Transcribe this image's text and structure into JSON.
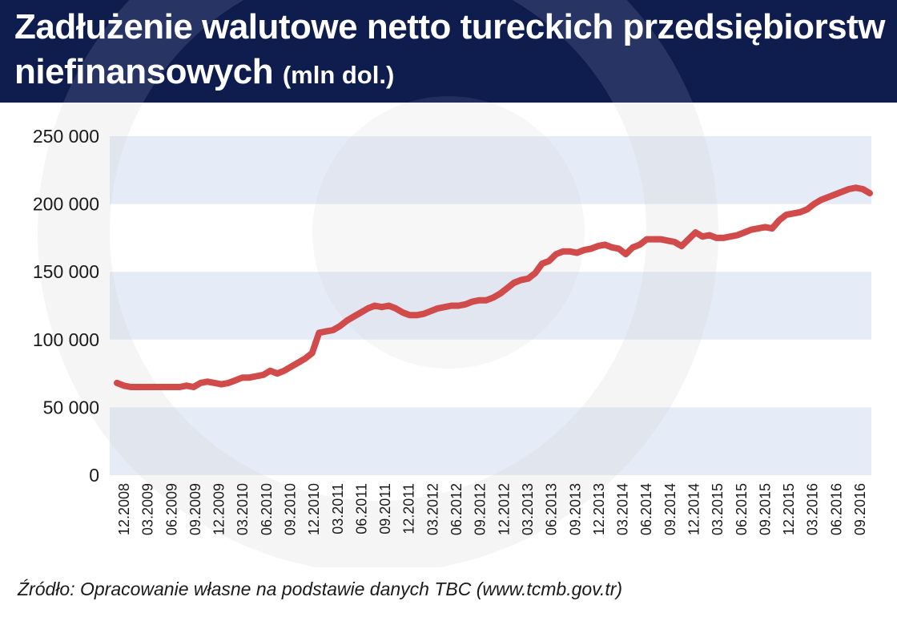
{
  "header": {
    "title": "Zadłużenie walutowe netto tureckich przedsiębiorstw niefinansowych",
    "unit": "(mln dol.)"
  },
  "source": "Źródło: Opracowanie własne na podstawie danych TBC (www.tcmb.gov.tr)",
  "colors": {
    "header_bg": "#0e1d4e",
    "band": "#e6ecf7",
    "line": "#d24b4b",
    "watermark": "#c8c8c8"
  },
  "chart_data": {
    "type": "line",
    "title": "Zadłużenie walutowe netto tureckich przedsiębiorstw niefinansowych (mln dol.)",
    "ylim": [
      0,
      250000
    ],
    "yticks": [
      0,
      50000,
      100000,
      150000,
      200000,
      250000
    ],
    "ytick_labels": [
      "0",
      "50 000",
      "100 000",
      "150 000",
      "200 000",
      "250 000"
    ],
    "xtick_labels": [
      "12.2008",
      "03.2009",
      "06.2009",
      "09.2009",
      "12.2009",
      "03.2010",
      "06.2010",
      "09.2010",
      "12.2010",
      "03.2011",
      "06.2011",
      "09.2011",
      "12.2011",
      "03.2012",
      "06.2012",
      "09.2012",
      "12.2012",
      "03.2013",
      "06.2013",
      "09.2013",
      "12.2013",
      "03.2014",
      "06.2014",
      "09.2014",
      "12.2014",
      "03.2015",
      "06.2015",
      "09.2015",
      "12.2015",
      "03.2016",
      "06.2016",
      "09.2016"
    ],
    "grid": "horizontal bands",
    "series": [
      {
        "values": [
          68000,
          66000,
          65000,
          65000,
          65000,
          65000,
          65000,
          65000,
          65000,
          65000,
          66000,
          65000,
          68000,
          69000,
          68000,
          67000,
          68000,
          70000,
          72000,
          72000,
          73000,
          74000,
          77000,
          75000,
          77000,
          80000,
          83000,
          86000,
          90000,
          105000,
          106000,
          107000,
          110000,
          114000,
          117000,
          120000,
          123000,
          125000,
          124000,
          125000,
          123000,
          120000,
          118000,
          118000,
          119000,
          121000,
          123000,
          124000,
          125000,
          125000,
          126000,
          128000,
          129000,
          129000,
          131000,
          134000,
          138000,
          142000,
          144000,
          145000,
          149000,
          156000,
          158000,
          163000,
          165000,
          165000,
          164000,
          166000,
          167000,
          169000,
          170000,
          168000,
          167000,
          163000,
          168000,
          170000,
          174000,
          174000,
          174000,
          173000,
          172000,
          169000,
          174000,
          179000,
          176000,
          177000,
          175000,
          175000,
          176000,
          177000,
          179000,
          181000,
          182000,
          183000,
          182000,
          188000,
          192000,
          193000,
          194000,
          196000,
          200000,
          203000,
          205000,
          207000,
          209000,
          211000,
          212000,
          211000,
          208000
        ]
      }
    ]
  }
}
